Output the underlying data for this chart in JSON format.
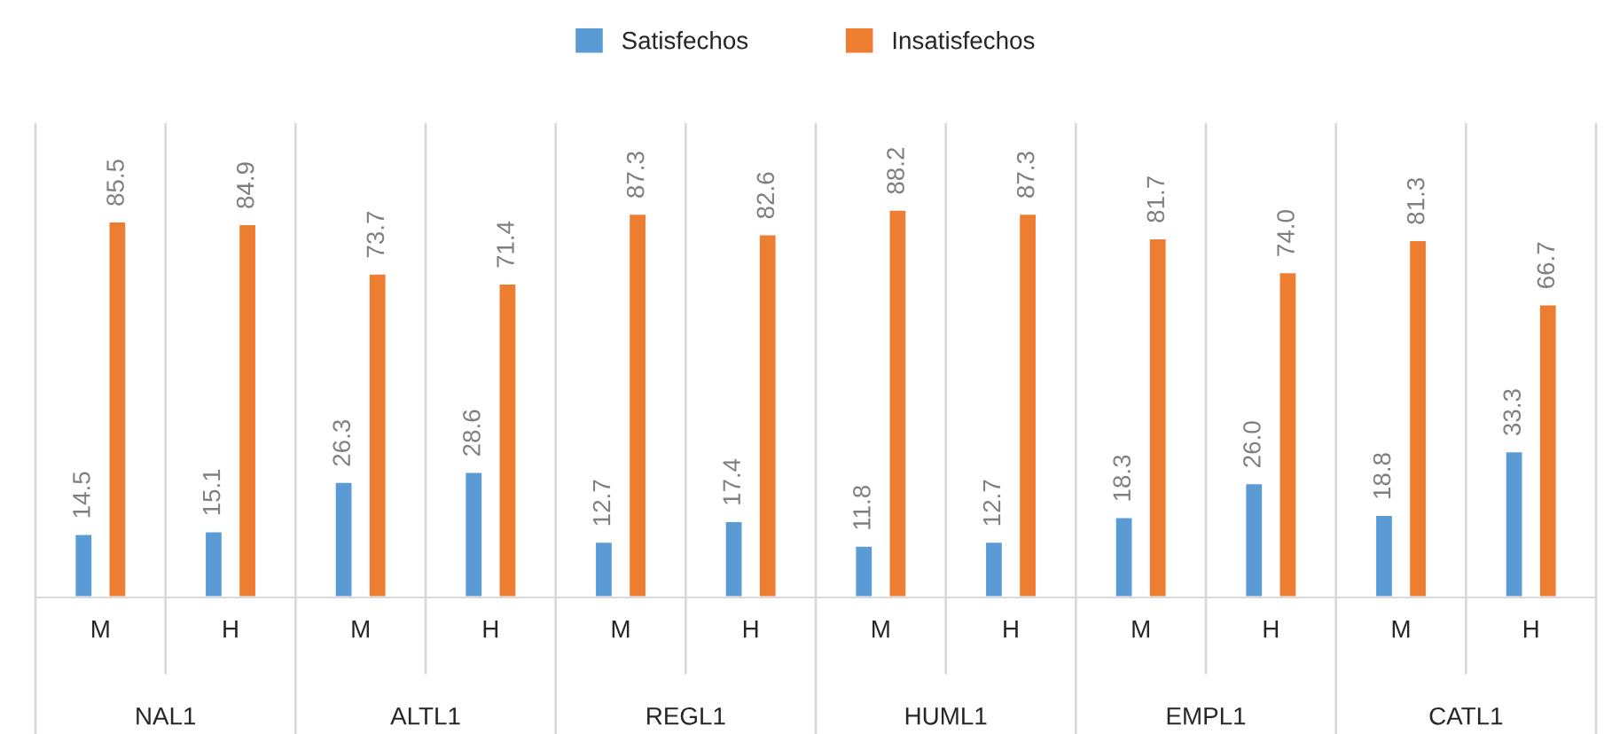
{
  "chart_data": {
    "type": "bar",
    "categories": [
      "M",
      "H",
      "M",
      "H",
      "M",
      "H",
      "M",
      "H",
      "M",
      "H",
      "M",
      "H"
    ],
    "series": [
      {
        "name": "Satisfechos",
        "color": "#5b9bd5",
        "values": [
          14.5,
          15.1,
          26.3,
          28.6,
          12.7,
          17.4,
          11.8,
          12.7,
          18.3,
          26.0,
          18.8,
          33.3
        ],
        "value_labels": [
          "14.5",
          "15.1",
          "26.3",
          "28.6",
          "12.7",
          "17.4",
          "11.8",
          "12.7",
          "18.3",
          "26.0",
          "18.8",
          "33.3"
        ]
      },
      {
        "name": "Insatisfechos",
        "color": "#ed7d31",
        "values": [
          85.5,
          84.9,
          73.7,
          71.4,
          87.3,
          82.6,
          88.2,
          87.3,
          81.7,
          74.0,
          81.3,
          66.7
        ],
        "value_labels": [
          "85.5",
          "84.9",
          "73.7",
          "71.4",
          "87.3",
          "82.6",
          "88.2",
          "87.3",
          "81.7",
          "74.0",
          "81.3",
          "66.7"
        ]
      }
    ],
    "annotations": [
      "NAL1",
      "ALTL1",
      "REGL1",
      "HUML1",
      "EMPL1",
      "CATL1"
    ],
    "grid": false,
    "legend": "top"
  }
}
